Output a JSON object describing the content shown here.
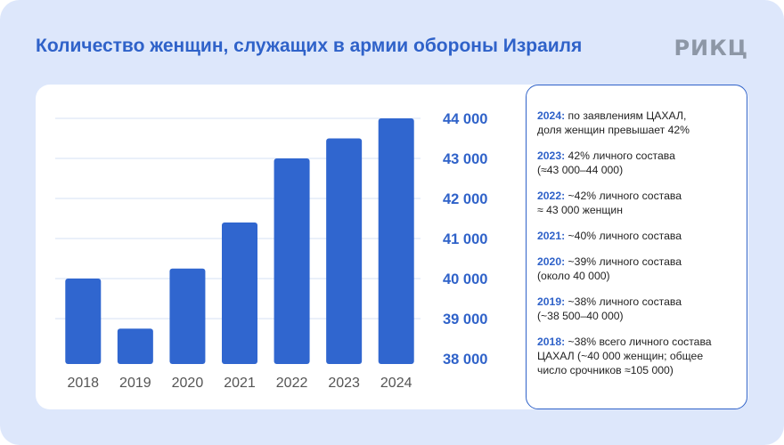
{
  "header": {
    "title": "Количество женщин, служащих в армии обороны Израиля",
    "brand": "РИКЦ"
  },
  "colors": {
    "accent": "#2f62c9",
    "bar": "#3066cf",
    "background": "#dde7fb",
    "grid": "#d4e0f6"
  },
  "chart_data": {
    "type": "bar",
    "title": "Количество женщин, служащих в армии обороны Израиля",
    "xlabel": "",
    "ylabel": "",
    "categories": [
      "2018",
      "2019",
      "2020",
      "2021",
      "2022",
      "2023",
      "2024"
    ],
    "values": [
      40000,
      38750,
      40250,
      41400,
      43000,
      43500,
      44000
    ],
    "ylim": [
      38000,
      44000
    ],
    "yticks": [
      38000,
      39000,
      40000,
      41000,
      42000,
      43000,
      44000
    ],
    "ytick_labels": [
      "38 000",
      "39 000",
      "40 000",
      "41 000",
      "42 000",
      "43 000",
      "44 000"
    ],
    "yaxis_side": "right",
    "grid": true
  },
  "notes": [
    {
      "year": "2024:",
      "lines": [
        "по заявлениям ЦАХАЛ,",
        "доля женщин превышает 42%"
      ]
    },
    {
      "year": "2023:",
      "lines": [
        "42% личного состава",
        "(≈43 000–44 000)"
      ]
    },
    {
      "year": "2022:",
      "lines": [
        "~42% личного состава",
        "≈ 43 000 женщин"
      ]
    },
    {
      "year": "2021:",
      "lines": [
        "~40% личного состава"
      ]
    },
    {
      "year": "2020:",
      "lines": [
        "~39% личного состава",
        "(около 40 000)"
      ]
    },
    {
      "year": "2019:",
      "lines": [
        "~38% личного состава",
        "(~38 500–40 000)"
      ]
    },
    {
      "year": "2018:",
      "lines": [
        "~38% всего личного состава",
        "ЦАХАЛ (~40 000 женщин; общее",
        "число срочников ≈105 000)"
      ]
    }
  ]
}
